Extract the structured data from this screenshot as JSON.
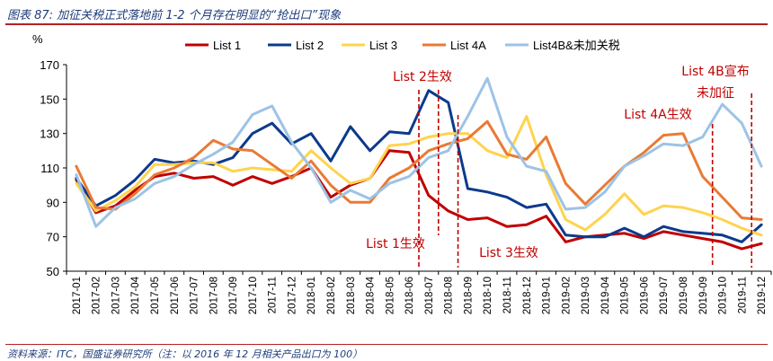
{
  "figure": {
    "title": "图表 87:  加征关税正式落地前 1-2 个月存在明显的“抢出口”现象",
    "source": "资料来源：ITC，国盛证券研究所（注：以 2016 年 12 月相关产品出口为 100）"
  },
  "chart_data": {
    "type": "line",
    "ylabel": "%",
    "ylim": [
      50,
      170
    ],
    "yticks": [
      50,
      70,
      90,
      110,
      130,
      150,
      170
    ],
    "x": [
      "2017-01",
      "2017-02",
      "2017-03",
      "2017-04",
      "2017-05",
      "2017-06",
      "2017-07",
      "2017-08",
      "2017-09",
      "2017-10",
      "2017-11",
      "2017-12",
      "2018-01",
      "2018-02",
      "2018-03",
      "2018-04",
      "2018-05",
      "2018-06",
      "2018-07",
      "2018-08",
      "2018-09",
      "2018-10",
      "2018-11",
      "2018-12",
      "2019-01",
      "2019-02",
      "2019-03",
      "2019-04",
      "2019-05",
      "2019-06",
      "2019-07",
      "2019-08",
      "2019-09",
      "2019-10",
      "2019-11",
      "2019-12"
    ],
    "series": [
      {
        "name": "List 1",
        "color": "#c00000",
        "values": [
          103,
          84,
          88,
          97,
          105,
          107,
          104,
          105,
          100,
          105,
          101,
          105,
          110,
          93,
          100,
          104,
          120,
          119,
          94,
          85,
          80,
          81,
          76,
          77,
          82,
          67,
          70,
          71,
          72,
          69,
          73,
          71,
          69,
          67,
          63,
          66
        ]
      },
      {
        "name": "List 2",
        "color": "#0c3a8c",
        "values": [
          104,
          88,
          94,
          103,
          115,
          113,
          114,
          112,
          116,
          130,
          136,
          124,
          130,
          114,
          134,
          120,
          131,
          130,
          155,
          148,
          98,
          96,
          93,
          87,
          89,
          71,
          70,
          70,
          75,
          70,
          76,
          73,
          72,
          71,
          67,
          77
        ]
      },
      {
        "name": "List 3",
        "color": "#ffd34d",
        "values": [
          101,
          85,
          91,
          99,
          112,
          112,
          113,
          113,
          108,
          110,
          109,
          108,
          120,
          110,
          101,
          104,
          123,
          124,
          128,
          130,
          130,
          120,
          116,
          140,
          106,
          80,
          74,
          83,
          95,
          83,
          88,
          87,
          84,
          80,
          75,
          71
        ]
      },
      {
        "name": "List 4A",
        "color": "#e97a34",
        "values": [
          111,
          87,
          86,
          95,
          106,
          110,
          116,
          126,
          121,
          120,
          112,
          104,
          114,
          100,
          90,
          90,
          104,
          110,
          120,
          124,
          127,
          137,
          118,
          115,
          128,
          101,
          89,
          100,
          111,
          119,
          129,
          130,
          105,
          93,
          81,
          80
        ]
      },
      {
        "name": "List4B&未加关税",
        "color": "#9dc3e6",
        "values": [
          106,
          76,
          87,
          92,
          101,
          105,
          112,
          118,
          125,
          141,
          146,
          125,
          110,
          90,
          97,
          92,
          101,
          105,
          116,
          120,
          140,
          162,
          128,
          111,
          108,
          86,
          87,
          96,
          111,
          117,
          124,
          123,
          128,
          147,
          136,
          111
        ]
      }
    ],
    "annotations": [
      {
        "text": "List 2生效",
        "x_index": 18.5
      },
      {
        "text": "List 1生效",
        "x_index": 18.5
      },
      {
        "text": "List 3生效",
        "x_index": 20.5
      },
      {
        "text": "List 4A生效",
        "x_index": 32.5
      },
      {
        "text": "List 4B宣布",
        "x_index": 34.5
      },
      {
        "text": "未加征",
        "x_index": 34.5
      }
    ]
  }
}
